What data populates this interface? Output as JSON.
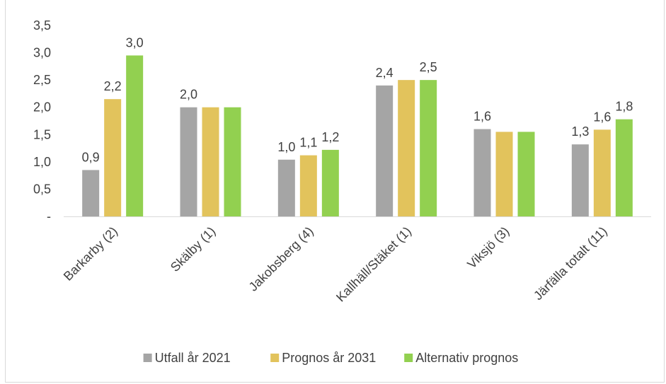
{
  "chart_data": {
    "type": "bar",
    "categories": [
      "Barkarby (2)",
      "Skälby (1)",
      "Jakobsberg (4)",
      "Kallhäll/Stäket (1)",
      "Viksjö (3)",
      "Järfälla totalt (11)"
    ],
    "series": [
      {
        "name": "Utfall år 2021",
        "color": "#a5a5a5",
        "values": [
          0.85,
          2.0,
          1.04,
          2.4,
          1.6,
          1.32
        ],
        "labels": [
          "0,9",
          "2,0",
          "1,0",
          "2,4",
          "1,6",
          "1,3"
        ]
      },
      {
        "name": "Prognos år 2031",
        "color": "#e2c35c",
        "values": [
          2.15,
          2.0,
          1.12,
          2.5,
          1.55,
          1.59
        ],
        "labels": [
          "2,2",
          "",
          "1,1",
          "",
          "",
          "1,6"
        ]
      },
      {
        "name": "Alternativ prognos",
        "color": "#92d050",
        "values": [
          2.95,
          2.0,
          1.22,
          2.5,
          1.55,
          1.78
        ],
        "labels": [
          "3,0",
          "",
          "1,2",
          "2,5",
          "",
          "1,8"
        ]
      }
    ],
    "ylim": [
      0,
      3.5
    ],
    "yticks": [
      {
        "value": 0,
        "label": "-"
      },
      {
        "value": 0.5,
        "label": "0,5"
      },
      {
        "value": 1.0,
        "label": "1,0"
      },
      {
        "value": 1.5,
        "label": "1,5"
      },
      {
        "value": 2.0,
        "label": "2,0"
      },
      {
        "value": 2.5,
        "label": "2,5"
      },
      {
        "value": 3.0,
        "label": "3,0"
      },
      {
        "value": 3.5,
        "label": "3,5"
      }
    ],
    "grid": false,
    "legend_position": "bottom"
  }
}
